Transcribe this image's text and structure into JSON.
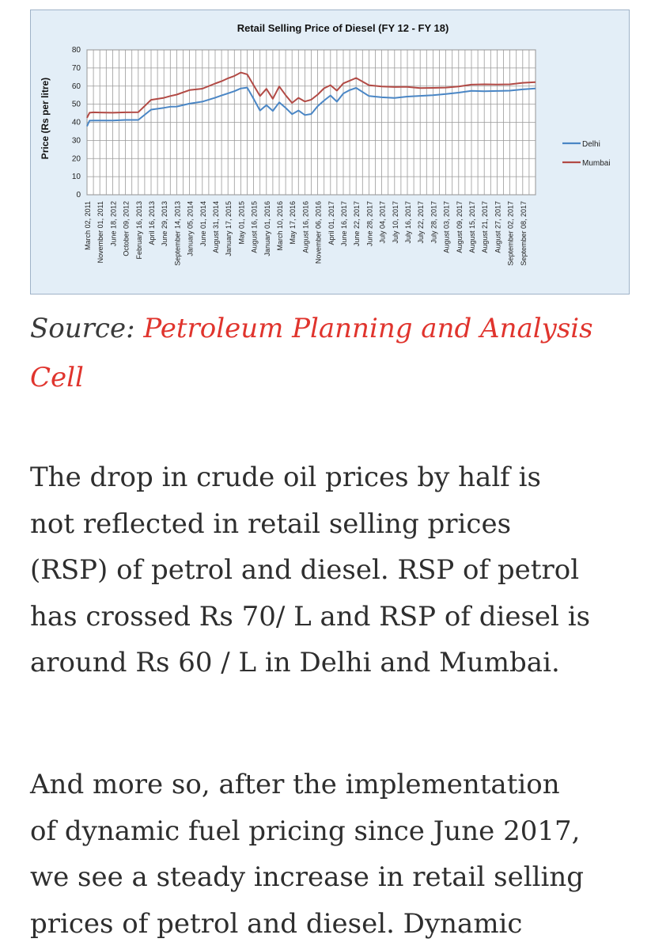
{
  "chart_data": {
    "type": "line",
    "title": "Retail Selling Price of Diesel (FY 12 - FY 18)",
    "xlabel": "",
    "ylabel": "Price (Rs per litre)",
    "ylim": [
      0,
      80
    ],
    "yticks": [
      0,
      10,
      20,
      30,
      40,
      50,
      60,
      70,
      80
    ],
    "grid": true,
    "legend_position": "right",
    "x_tick_labels": [
      "March 02, 2011",
      "November 01, 2011",
      "June 18, 2012",
      "October 09, 2012",
      "February 16, 2013",
      "April 16, 2013",
      "June 29, 2013",
      "September 14, 2013",
      "January 05, 2014",
      "June 01, 2014",
      "August 31, 2014",
      "January 17, 2015",
      "May 01, 2015",
      "August 16, 2015",
      "January 01, 2016",
      "March 10, 2016",
      "May 17, 2016",
      "August 16, 2016",
      "November 06, 2016",
      "April 01, 2017",
      "June 16, 2017",
      "June 22, 2017",
      "June 28, 2017",
      "July 04, 2017",
      "July 10, 2017",
      "July 16, 2017",
      "July 22, 2017",
      "July 28, 2017",
      "August 03, 2017",
      "August 09, 2017",
      "August 15, 2017",
      "August 21, 2017",
      "August 27, 2017",
      "September 02, 2017",
      "September 08, 2017"
    ],
    "x": [
      0,
      0.2,
      0.5,
      1,
      2,
      3,
      4,
      5,
      6,
      6.5,
      7,
      8,
      9,
      10,
      10.5,
      11,
      11.5,
      12,
      12.5,
      13,
      13.5,
      14,
      14.5,
      15,
      15.5,
      16,
      16.5,
      17,
      17.5,
      18,
      18.5,
      19,
      19.5,
      20,
      20.5,
      21,
      22,
      23,
      24,
      25,
      26,
      27,
      28,
      29,
      30,
      31,
      32,
      33,
      34,
      35
    ],
    "series": [
      {
        "name": "Delhi",
        "color": "#4a86c5",
        "values": [
          37.8,
          40.9,
          41,
          41,
          41,
          41.3,
          41.3,
          47,
          48,
          48.6,
          48.7,
          50.3,
          51.4,
          53.6,
          54.8,
          56,
          57.2,
          58.7,
          59.2,
          53,
          46.5,
          49.5,
          46.3,
          51,
          48,
          44.5,
          46.5,
          44,
          44.6,
          48.9,
          52,
          54.8,
          51.4,
          55.9,
          57.8,
          59,
          54.5,
          53.8,
          53.4,
          54.2,
          54.6,
          55,
          55.6,
          56.4,
          57.4,
          57.2,
          57.3,
          57.5,
          58.2,
          58.7
        ]
      },
      {
        "name": "Mumbai",
        "color": "#b24a45",
        "values": [
          42.5,
          45.3,
          45.5,
          45.4,
          45.3,
          45.5,
          45.6,
          52.4,
          53.5,
          54.5,
          55.3,
          57.8,
          58.6,
          61.4,
          62.7,
          64.3,
          65.6,
          67.5,
          66.5,
          60.5,
          54.5,
          58.5,
          53,
          59.8,
          55,
          50.7,
          53.5,
          51.5,
          52.5,
          55.3,
          58.8,
          60.5,
          57.5,
          61.5,
          63,
          64.5,
          60.5,
          59.8,
          59.5,
          59.6,
          58.9,
          59,
          59.2,
          59.8,
          60.8,
          61,
          60.9,
          61,
          61.8,
          62.2
        ]
      }
    ]
  },
  "source": {
    "label": "Source:",
    "link_line1": "Petroleum Planning and Analysis",
    "link_line2": "Cell"
  },
  "paragraphs": {
    "p1": [
      "The drop in crude oil prices by half is",
      "not reflected in retail selling prices",
      "(RSP) of petrol and diesel. RSP of petrol",
      "has crossed Rs 70/ L and RSP of diesel is",
      "around Rs 60 / L in Delhi and Mumbai."
    ],
    "p2": [
      "And more so, after the implementation",
      "of dynamic fuel pricing since June 2017,",
      "we see a steady increase in retail selling",
      "prices of petrol and diesel. Dynamic"
    ]
  }
}
